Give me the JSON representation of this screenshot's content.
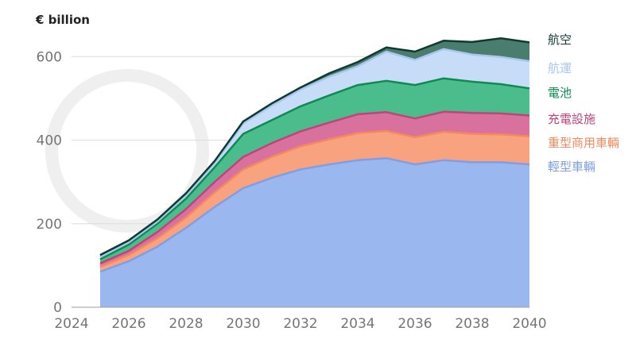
{
  "chart_data": {
    "type": "area",
    "stacked": true,
    "title": "",
    "ylabel": "€ billion",
    "xlabel": "",
    "x": [
      2025,
      2026,
      2027,
      2028,
      2029,
      2030,
      2031,
      2032,
      2033,
      2034,
      2035,
      2036,
      2037,
      2038,
      2039,
      2040
    ],
    "xticks": [
      2024,
      2026,
      2028,
      2030,
      2032,
      2034,
      2036,
      2038,
      2040
    ],
    "xlim": [
      2024,
      2040
    ],
    "yticks": [
      0,
      200,
      400,
      600
    ],
    "ylim": [
      0,
      650
    ],
    "grid": true,
    "legend_position": "right, at series end",
    "series": [
      {
        "name": "輕型車輛",
        "color": "#9ab7f0",
        "line": "#7f9fe4",
        "values": [
          85,
          110,
          145,
          190,
          240,
          285,
          310,
          330,
          342,
          352,
          357,
          342,
          352,
          347,
          347,
          342
        ]
      },
      {
        "name": "重型商用車輛",
        "color": "#f8a27f",
        "line": "#f38a5f",
        "values": [
          12,
          15,
          20,
          25,
          35,
          45,
          50,
          55,
          60,
          65,
          65,
          65,
          68,
          68,
          67,
          67
        ]
      },
      {
        "name": "充電設施",
        "color": "#d9719f",
        "line": "#c0437a",
        "values": [
          8,
          10,
          15,
          20,
          25,
          30,
          33,
          36,
          40,
          45,
          45,
          45,
          48,
          50,
          50,
          50
        ]
      },
      {
        "name": "電池",
        "color": "#4bbd8c",
        "line": "#0f8a53",
        "values": [
          10,
          15,
          20,
          25,
          35,
          55,
          55,
          60,
          65,
          70,
          75,
          80,
          80,
          75,
          70,
          65
        ]
      },
      {
        "name": "航運",
        "color": "#c7dcf6",
        "line": "#a9c6ee",
        "values": [
          5,
          5,
          5,
          8,
          10,
          25,
          35,
          40,
          45,
          45,
          70,
          60,
          70,
          65,
          65,
          65
        ]
      },
      {
        "name": "航空",
        "color": "#4b7d6e",
        "line": "#0e3a30",
        "values": [
          5,
          5,
          5,
          5,
          5,
          5,
          5,
          5,
          8,
          10,
          10,
          20,
          20,
          30,
          45,
          45
        ]
      }
    ]
  }
}
